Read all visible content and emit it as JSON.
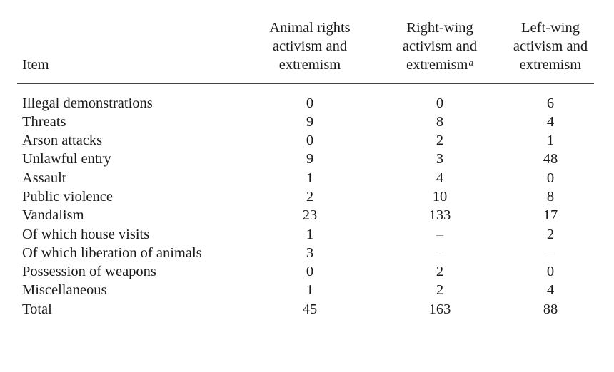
{
  "table": {
    "headers": {
      "item": "Item",
      "col1": [
        "Animal rights",
        "activism and",
        "extremism"
      ],
      "col2": [
        "Right-wing",
        "activism and",
        "extremism"
      ],
      "col2_note": "a",
      "col3": [
        "Left-wing",
        "activism and",
        "extremism"
      ]
    },
    "rows": [
      {
        "item": "Illegal demonstrations",
        "animal": "0",
        "right": "0",
        "left": "6"
      },
      {
        "item": "Threats",
        "animal": "9",
        "right": "8",
        "left": "4"
      },
      {
        "item": "Arson attacks",
        "animal": "0",
        "right": "2",
        "left": "1"
      },
      {
        "item": "Unlawful entry",
        "animal": "9",
        "right": "3",
        "left": "48"
      },
      {
        "item": "Assault",
        "animal": "1",
        "right": "4",
        "left": "0"
      },
      {
        "item": "Public violence",
        "animal": "2",
        "right": "10",
        "left": "8"
      },
      {
        "item": "Vandalism",
        "animal": "23",
        "right": "133",
        "left": "17"
      },
      {
        "item": "Of which house visits",
        "animal": "1",
        "right": "–",
        "left": "2"
      },
      {
        "item": "Of which liberation of animals",
        "animal": "3",
        "right": "–",
        "left": "–"
      },
      {
        "item": "Possession of weapons",
        "animal": "0",
        "right": "2",
        "left": "0"
      },
      {
        "item": "Miscellaneous",
        "animal": "1",
        "right": "2",
        "left": "4"
      },
      {
        "item": "Total",
        "animal": "45",
        "right": "163",
        "left": "88"
      }
    ]
  }
}
